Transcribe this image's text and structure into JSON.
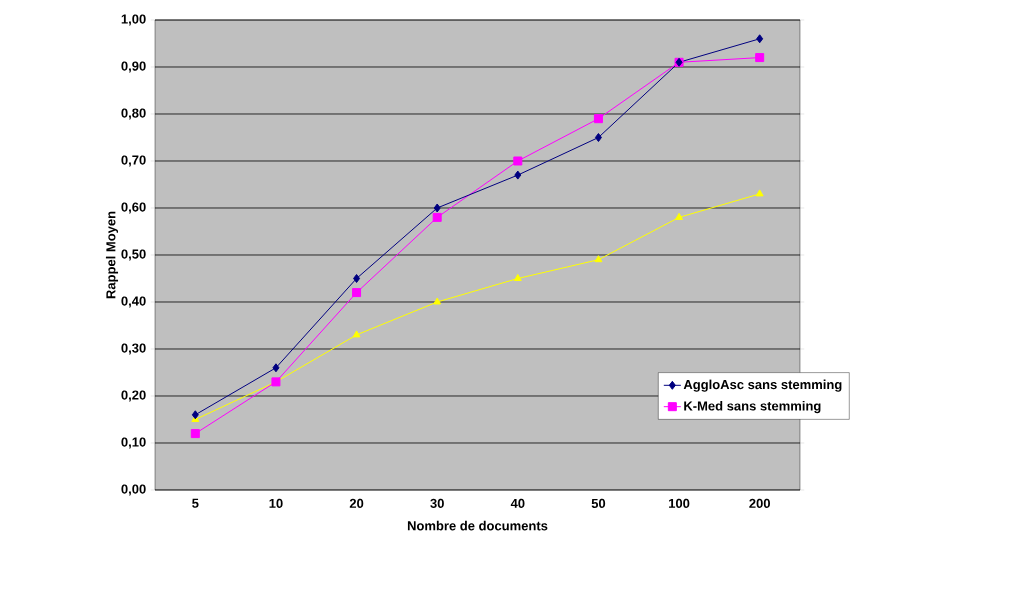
{
  "chart_data": {
    "type": "line",
    "xlabel": "Nombre de documents",
    "ylabel": "Rappel Moyen",
    "categories": [
      "5",
      "10",
      "20",
      "30",
      "40",
      "50",
      "100",
      "200"
    ],
    "series": [
      {
        "name": "AggloAsc sans stemming",
        "color": "#000080",
        "marker": "diamond",
        "values": [
          0.16,
          0.26,
          0.45,
          0.6,
          0.67,
          0.75,
          0.91,
          0.96
        ]
      },
      {
        "name": "K-Med sans stemming",
        "color": "#ff00ff",
        "marker": "square",
        "values": [
          0.12,
          0.23,
          0.42,
          0.58,
          0.7,
          0.79,
          0.91,
          0.92
        ]
      },
      {
        "color": "#ffff00",
        "marker": "triangle",
        "values": [
          0.15,
          0.23,
          0.33,
          0.4,
          0.45,
          0.49,
          0.58,
          0.63
        ]
      }
    ],
    "ylim": [
      0,
      1
    ],
    "yticks": [
      {
        "value": 0,
        "label": "0,00"
      },
      {
        "value": 0.1,
        "label": "0,10"
      },
      {
        "value": 0.2,
        "label": "0,20"
      },
      {
        "value": 0.3,
        "label": "0,30"
      },
      {
        "value": 0.4,
        "label": "0,40"
      },
      {
        "value": 0.5,
        "label": "0,50"
      },
      {
        "value": 0.6,
        "label": "0,60"
      },
      {
        "value": 0.7,
        "label": "0,70"
      },
      {
        "value": 0.8,
        "label": "0,80"
      },
      {
        "value": 0.9,
        "label": "0,90"
      },
      {
        "value": 1,
        "label": "1,00"
      }
    ],
    "grid": "y",
    "legend": "right"
  }
}
